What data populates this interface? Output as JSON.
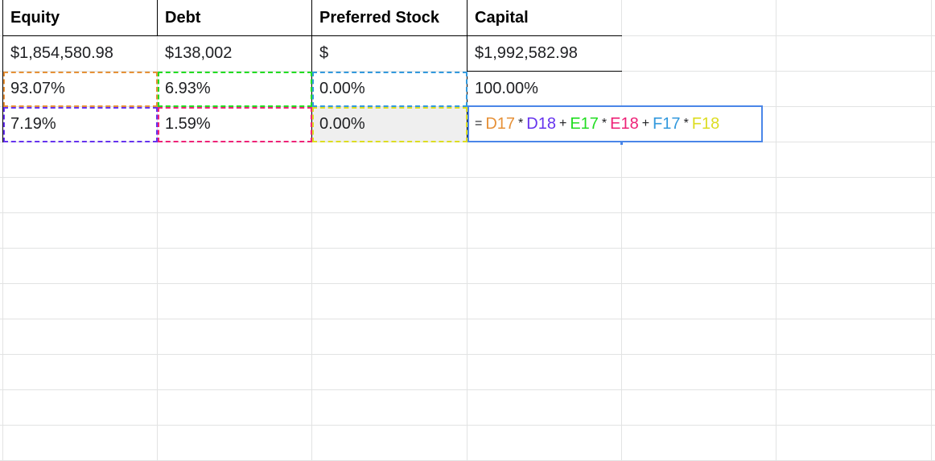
{
  "sheet": {
    "header_row": [
      "Equity",
      "Debt",
      "Preferred Stock",
      "Capital"
    ],
    "value_row": [
      "$1,854,580.98",
      "$138,002",
      "$",
      "$1,992,582.98"
    ],
    "weight_row": [
      "93.07%",
      "6.93%",
      "0.00%",
      "100.00%"
    ],
    "cost_row": [
      "7.19%",
      "1.59%",
      "0.00%"
    ]
  },
  "formula": {
    "equals": "=",
    "d17": "D17",
    "times1": "*",
    "d18": "D18",
    "plus1": "+",
    "e17": "E17",
    "times2": "*",
    "e18": "E18",
    "plus2": "+",
    "f17": "F17",
    "times3": "*",
    "f18": "F18"
  },
  "colors": {
    "d17": "#e69138",
    "d18": "#6633ee",
    "e17": "#22dd22",
    "e18": "#ee2277",
    "f17": "#3399dd",
    "f18": "#dddd22",
    "editor_border": "#4a86e8"
  }
}
